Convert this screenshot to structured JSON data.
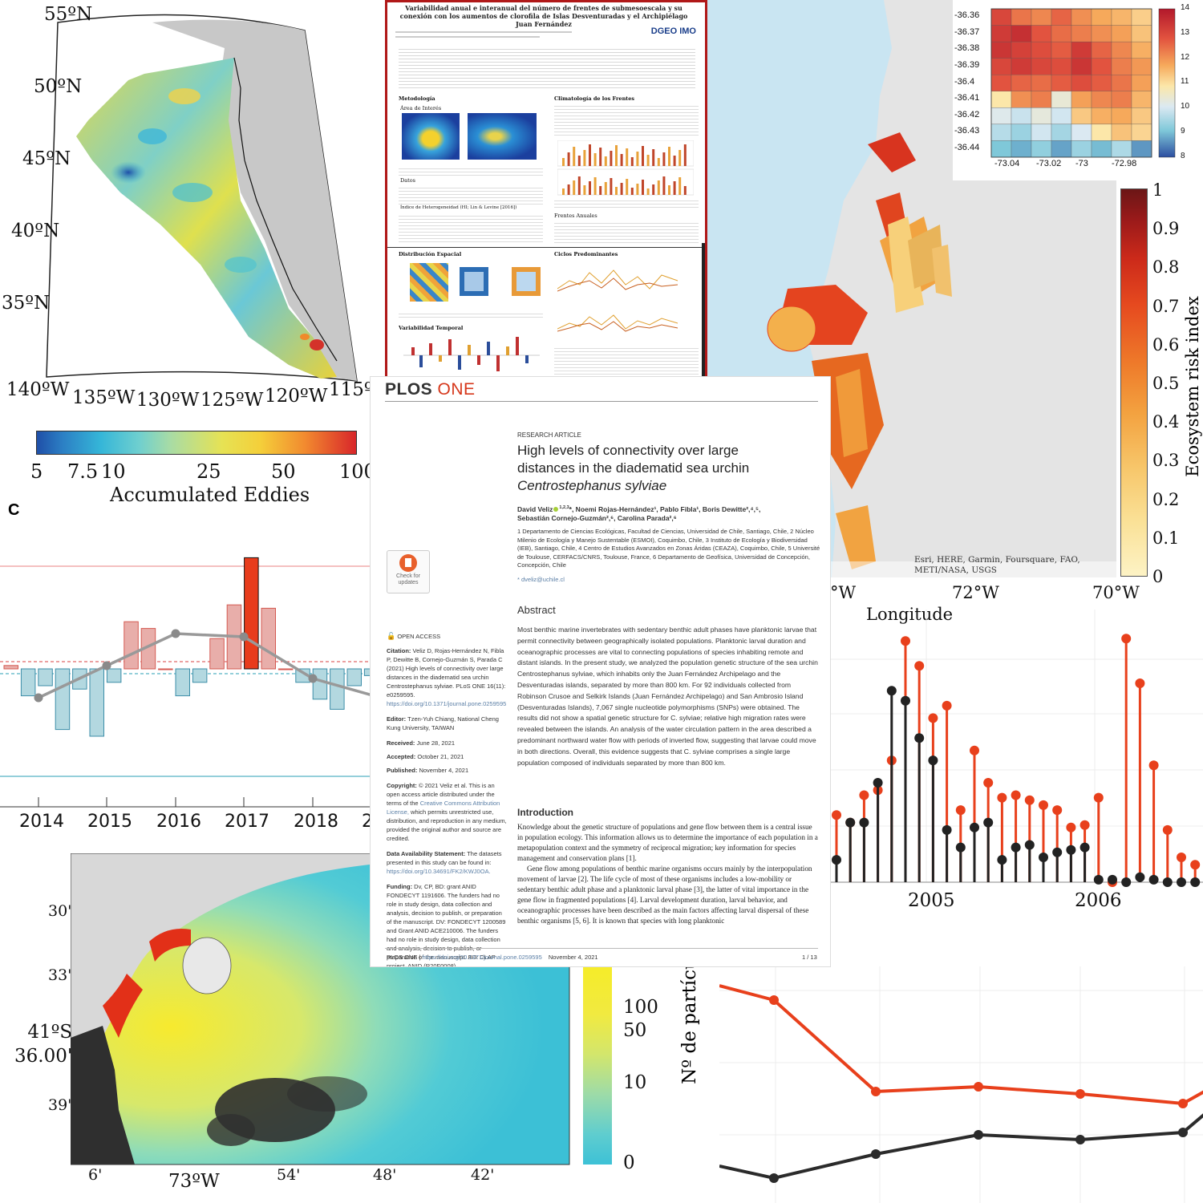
{
  "eddy_map": {
    "lat_labels": [
      "55ºN",
      "50ºN",
      "45ºN",
      "40ºN",
      "35ºN"
    ],
    "lon_labels": [
      "140ºW",
      "135ºW",
      "130ºW",
      "125ºW",
      "120ºW",
      "115º"
    ],
    "colorbar_ticks": [
      "5",
      "7.5",
      "10",
      "25",
      "50",
      "100"
    ],
    "colorbar_label": "Accumulated Eddies"
  },
  "poster": {
    "title": "Variabilidad anual e interanual del número de frentes de submesoescala y su conexión con los aumentos de clorofila de Islas Desventuradas y el Archipiélago Juan Fernández",
    "logo_text": "DGEO IMO",
    "sections_left": [
      "Metodología",
      "Área de Interés",
      "Datos",
      "Índice de Heterogeneidad (HI; Lin & Levine [2016])",
      "Distribución Espacial",
      "Variabilidad Temporal"
    ],
    "sections_right": [
      "Climatología de los Frentes",
      "Frentes Anuales",
      "Ciclos Predominantes"
    ]
  },
  "risk_map": {
    "attribution": "Esri, HERE, Garmin, Foursquare, FAO, METI/NASA, USGS",
    "lon_labels": [
      "°W",
      "72°W",
      "70°W"
    ],
    "xlabel": "Longitude",
    "colorbar_ticks": [
      "1",
      "0.9",
      "0.8",
      "0.7",
      "0.6",
      "0.5",
      "0.4",
      "0.3",
      "0.2",
      "0.1",
      "0"
    ],
    "colorbar_label": "Ecosystem risk index"
  },
  "heatmap": {
    "chart_data": {
      "type": "heatmap",
      "y_labels": [
        "-36.36",
        "-36.37",
        "-36.38",
        "-36.39",
        "-36.4",
        "-36.41",
        "-36.42",
        "-36.43",
        "-36.44"
      ],
      "x_labels": [
        "-73.04",
        "-73.02",
        "-73",
        "-72.98"
      ],
      "colorbar_ticks": [
        "14",
        "13",
        "12",
        "11",
        "10",
        "9",
        "8"
      ],
      "values": [
        [
          13.2,
          12.6,
          12.4,
          12.8,
          12.3,
          12.0,
          11.8,
          11.4
        ],
        [
          13.4,
          13.6,
          13.0,
          12.7,
          12.5,
          12.3,
          12.1,
          11.6
        ],
        [
          13.5,
          13.3,
          13.1,
          12.9,
          13.4,
          12.8,
          12.4,
          11.9
        ],
        [
          13.2,
          13.4,
          13.2,
          13.1,
          13.5,
          13.0,
          12.5,
          12.2
        ],
        [
          13.0,
          12.8,
          12.7,
          12.9,
          13.1,
          12.9,
          12.6,
          12.1
        ],
        [
          11.0,
          12.3,
          12.5,
          10.4,
          12.1,
          12.4,
          12.5,
          11.8
        ],
        [
          10.1,
          9.8,
          10.3,
          9.9,
          11.5,
          11.9,
          12.0,
          11.5
        ],
        [
          9.6,
          9.3,
          9.9,
          9.4,
          10.0,
          11.0,
          11.6,
          11.3
        ],
        [
          9.0,
          8.8,
          9.2,
          8.7,
          9.3,
          8.9,
          9.5,
          8.6
        ]
      ]
    }
  },
  "bar_panel": {
    "label": "C",
    "chart_data": {
      "type": "bar",
      "x_labels": [
        "2014",
        "2015",
        "2016",
        "2017",
        "2018",
        "2"
      ],
      "values": [
        0.1,
        -0.8,
        -0.5,
        -1.8,
        -0.6,
        -2.0,
        -0.4,
        1.4,
        1.2,
        0,
        -0.8,
        -0.4,
        0.9,
        1.9,
        3.3,
        1.8,
        0,
        -0.4,
        -0.9,
        -1.2,
        -0.5,
        -0.2
      ],
      "line_values": [
        -0.9,
        0.1,
        1.1,
        1.0,
        -0.3,
        -0.9
      ]
    }
  },
  "stem_chart": {
    "x_labels": [
      "2005",
      "2006"
    ],
    "chart_data": {
      "type": "lollipop",
      "series": [
        {
          "name": "red",
          "color": "#e8401c",
          "values": [
            0.27,
            0.24,
            0.35,
            0.37,
            0.49,
            0.97,
            0.87,
            0.66,
            0.71,
            0.29,
            0.53,
            0.4,
            0.34,
            0.35,
            0.33,
            0.31,
            0.29,
            0.22,
            0.23,
            0.34,
            0.0,
            0.98,
            0.8,
            0.47,
            0.21,
            0.1,
            0.07,
            0.05,
            0.03
          ]
        },
        {
          "name": "black",
          "color": "#222222",
          "values": [
            0.09,
            0.24,
            0.24,
            0.4,
            0.77,
            0.73,
            0.58,
            0.49,
            0.21,
            0.14,
            0.22,
            0.24,
            0.09,
            0.14,
            0.15,
            0.1,
            0.12,
            0.13,
            0.14,
            0.01,
            0.01,
            0.0,
            0.02,
            0.01,
            0.0,
            0.0,
            0.0,
            0.0,
            0.0
          ]
        }
      ]
    }
  },
  "particle_map": {
    "lat_labels": [
      "30'",
      "33'",
      "41ºS\n36.00'",
      "39'"
    ],
    "lon_labels": [
      "6'",
      "73ºW",
      "54'",
      "48'",
      "42'"
    ],
    "colorbar_ticks": [
      "100",
      "50",
      "10",
      "0"
    ],
    "colorbar_label": "Nº de partícu"
  },
  "line_chart": {
    "chart_data": {
      "type": "line",
      "series": [
        {
          "name": "red",
          "color": "#e8401c",
          "values": [
            0.92,
            0.86,
            0.48,
            0.5,
            0.47,
            0.43,
            0.49
          ]
        },
        {
          "name": "black",
          "color": "#2b2b2b",
          "values": [
            0.17,
            0.12,
            0.22,
            0.3,
            0.28,
            0.31,
            0.4
          ]
        }
      ]
    }
  },
  "paper": {
    "journal": "PLOS",
    "journal_one": "ONE",
    "article_type": "RESEARCH ARTICLE",
    "title_line1": "High levels of connectivity over large",
    "title_line2": "distances in the diadematid sea urchin",
    "title_species": "Centrostephanus sylviae",
    "authors1": "David Veliz",
    "authors1_sup": "1,2,3",
    "authors1_rest": "*, Noemi Rojas-Hernández¹, Pablo Fibla¹, Boris Dewitte²,⁴,⁵,",
    "authors2": "Sebastián Cornejo-Guzmán²,⁶, Carolina Parada²,⁶",
    "affiliations": "1 Departamento de Ciencias Ecológicas, Facultad de Ciencias, Universidad de Chile, Santiago, Chile, 2 Núcleo Milenio de Ecología y Manejo Sustentable (ESMOI), Coquimbo, Chile, 3 Instituto de Ecología y Biodiversidad (IEB), Santiago, Chile, 4 Centro de Estudios Avanzados en Zonas Áridas (CEAZA), Coquimbo, Chile, 5 Université de Toulouse, CERFACS/CNRS, Toulouse, France, 6 Departamento de Geofísica, Universidad de Concepción, Concepción, Chile",
    "email": "* dveliz@uchile.cl",
    "check_updates": "Check for updates",
    "open_access": "OPEN ACCESS",
    "citation_label": "Citation:",
    "citation": "Veliz D, Rojas-Hernández N, Fibla P, Dewitte B, Cornejo-Guzmán S, Parada C (2021) High levels of connectivity over large distances in the diadematid sea urchin Centrostephanus sylviae. PLoS ONE 16(11): e0259595.",
    "citation_doi": "https://doi.org/10.1371/journal.pone.0259595",
    "editor_label": "Editor:",
    "editor": "Tzen-Yuh Chiang, National Cheng Kung University, TAIWAN",
    "received_label": "Received:",
    "received": "June 28, 2021",
    "accepted_label": "Accepted:",
    "accepted": "October 21, 2021",
    "published_label": "Published:",
    "published": "November 4, 2021",
    "copyright_label": "Copyright:",
    "copyright": "© 2021 Veliz et al. This is an open access article distributed under the terms of the",
    "copyright_link": "Creative Commons Attribution License,",
    "copyright_rest": "which permits unrestricted use, distribution, and reproduction in any medium, provided the original author and source are credited.",
    "data_label": "Data Availability Statement:",
    "data": "The datasets presented in this study can be found in:",
    "data_link": "https://doi.org/10.34691/FK2/KWJ0OA.",
    "funding_label": "Funding:",
    "funding": "Dv, CP, BD: grant ANID FONDECYT 1191606. The funders had no role in study design, data collection and analysis, decision to publish, or preparation of the manuscript. DV: FONDECYT 1200589 and Grant ANID ACE210006. The funders had no role in study design, data collection and analysis, decision to publish, or preparation of the manuscript. BD: CLAP project, ANID (R20F0008)",
    "abstract_heading": "Abstract",
    "abstract": "Most benthic marine invertebrates with sedentary benthic adult phases have planktonic larvae that permit connectivity between geographically isolated populations. Planktonic larval duration and oceanographic processes are vital to connecting populations of species inhabiting remote and distant islands. In the present study, we analyzed the population genetic structure of the sea urchin Centrostephanus sylviae, which inhabits only the Juan Fernández Archipelago and the Desventuradas islands, separated by more than 800 km. For 92 individuals collected from Robinson Crusoe and Selkirk Islands (Juan Fernández Archipelago) and San Ambrosio Island (Desventuradas Islands), 7,067 single nucleotide polymorphisms (SNPs) were obtained. The results did not show a spatial genetic structure for C. sylviae; relative high migration rates were revealed between the islands. An analysis of the water circulation pattern in the area described a predominant northward water flow with periods of inverted flow, suggesting that larvae could move in both directions. Overall, this evidence suggests that C. sylviae comprises a single large population composed of individuals separated by more than 800 km.",
    "intro_heading": "Introduction",
    "intro": "Knowledge about the genetic structure of populations and gene flow between them is a central issue in population ecology. This information allows us to determine the importance of each population in a metapopulation context and the symmetry of reciprocal migration; key information for species management and conservation plans [1].",
    "intro2": "Gene flow among populations of benthic marine organisms occurs mainly by the interpopulation movement of larvae [2]. The life cycle of most of these organisms includes a low-mobility or sedentary benthic adult phase and a planktonic larval phase [3], the latter of vital importance in the gene flow in fragmented populations [4]. Larval development duration, larval behavior, and oceanographic processes have been described as the main factors affecting larval dispersal of these benthic organisms [5, 6]. It is known that species with long planktonic",
    "footer_journal": "PLOS ONE |",
    "footer_doi": "https://doi.org/10.1371/journal.pone.0259595",
    "footer_date": "November 4, 2021",
    "footer_page": "1 / 13"
  }
}
